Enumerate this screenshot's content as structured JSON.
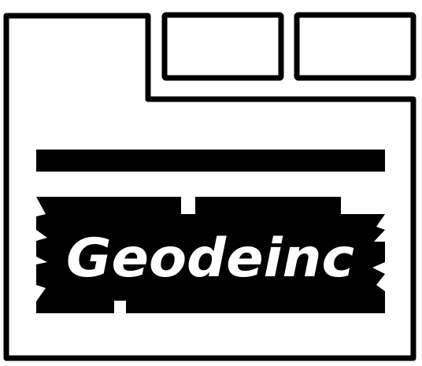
{
  "logo": {
    "wordmark": "Geodeinc",
    "icon": "folder-window-icon"
  },
  "colors": {
    "ink": "#000000",
    "paper": "#ffffff"
  }
}
